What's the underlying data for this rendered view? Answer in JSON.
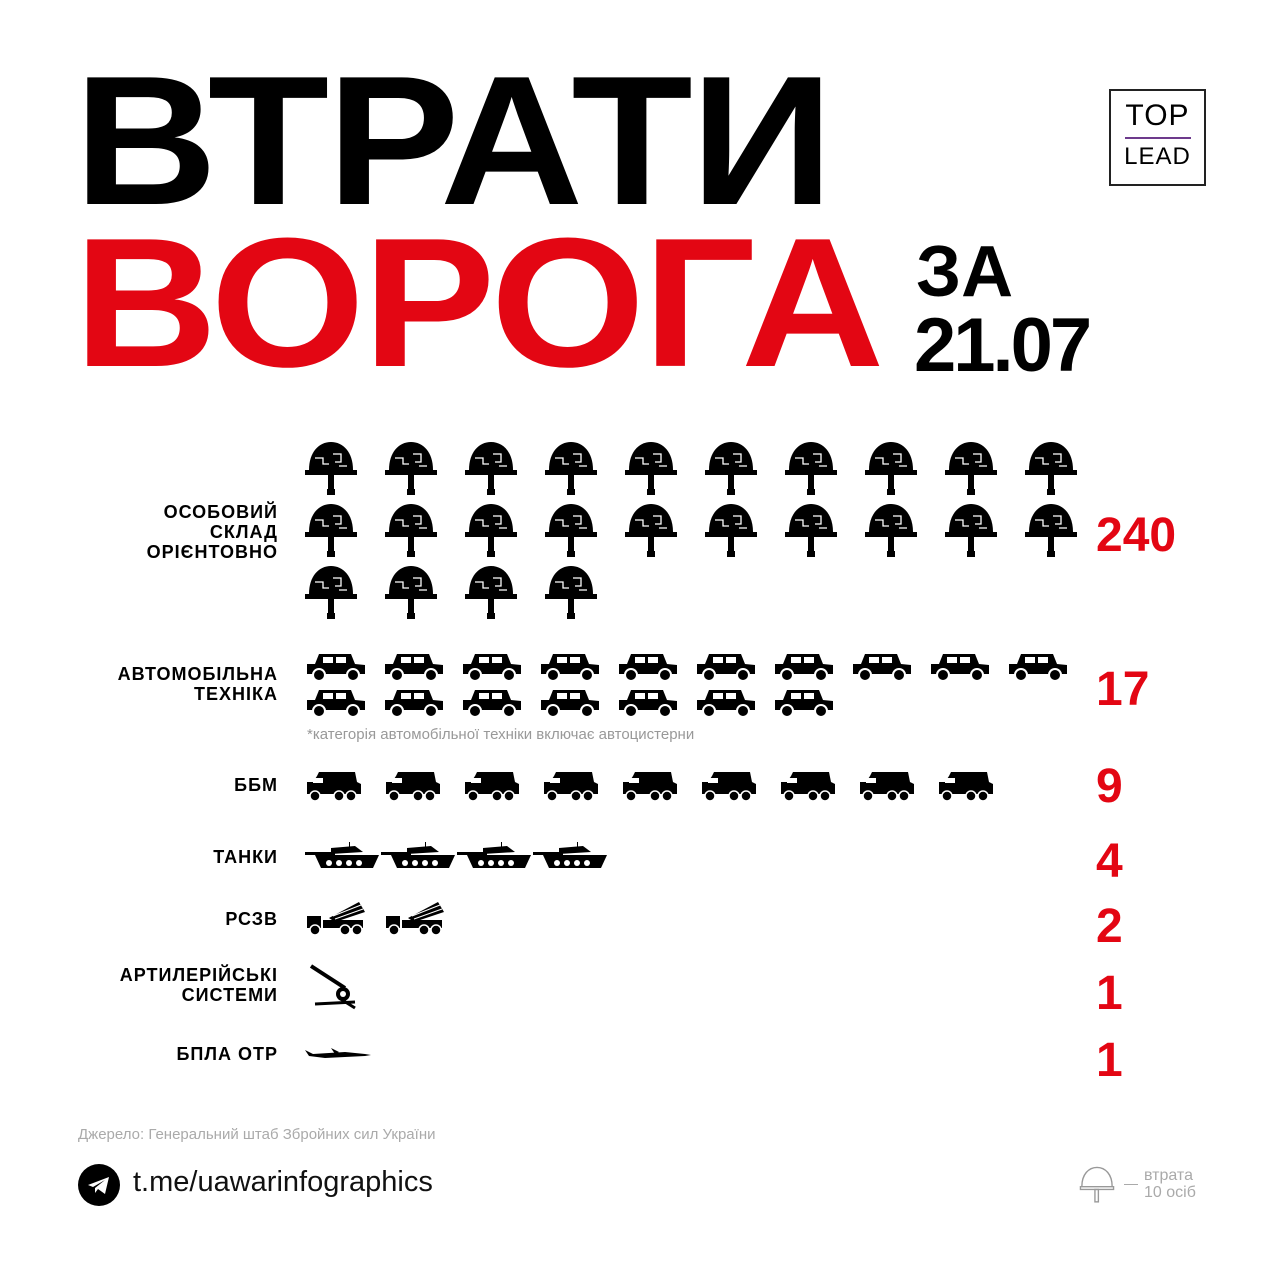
{
  "title": {
    "line1": "ВТРАТИ",
    "line2": "ВОРОГА",
    "za": "ЗА",
    "date": "21.07"
  },
  "logo": {
    "top": "TOP",
    "bottom": "LEAD"
  },
  "colors": {
    "accent": "#e30613",
    "text": "#000000",
    "muted": "#aaaaaa"
  },
  "chart_data": {
    "type": "bar",
    "style": "pictogram",
    "categories": [
      "ОСОБОВИЙ СКЛАД ОРІЄНТОВНО",
      "АВТОМОБІЛЬНА ТЕХНІКА",
      "ББМ",
      "ТАНКИ",
      "РСЗВ",
      "АРТИЛЕРІЙСЬКІ СИСТЕМИ",
      "БПЛА ОТР"
    ],
    "label_lines": [
      [
        "ОСОБОВИЙ",
        "СКЛАД",
        "ОРІЄНТОВНО"
      ],
      [
        "АВТОМОБІЛЬНА",
        "ТЕХНІКА"
      ],
      [
        "ББМ"
      ],
      [
        "ТАНКИ"
      ],
      [
        "РСЗВ"
      ],
      [
        "АРТИЛЕРІЙСЬКІ",
        "СИСТЕМИ"
      ],
      [
        "БПЛА ОТР"
      ]
    ],
    "values": [
      240,
      17,
      9,
      4,
      2,
      1,
      1
    ],
    "value_labels": [
      "240",
      "17",
      "9",
      "4",
      "2",
      "1",
      "1"
    ],
    "icons": [
      "helmet-icon",
      "car-icon",
      "armored-vehicle-icon",
      "tank-icon",
      "mlrs-icon",
      "artillery-icon",
      "uav-icon"
    ],
    "icon_counts": [
      24,
      17,
      9,
      4,
      2,
      1,
      1
    ],
    "units_per_icon": [
      10,
      1,
      1,
      1,
      1,
      1,
      1
    ]
  },
  "note": "*категорія автомобільної техніки включає автоцистерни",
  "source": "Джерело: Генеральний штаб Збройних сил України",
  "footer": {
    "link": "t.me/uawarinfographics",
    "legend_line1": "втрата",
    "legend_line2": "10 осіб"
  }
}
